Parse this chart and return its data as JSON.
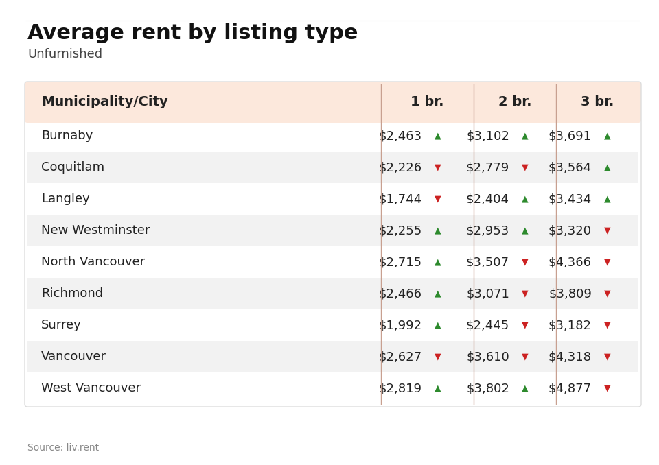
{
  "title": "Average rent by listing type",
  "subtitle": "Unfurnished",
  "source": "Source: liv.rent",
  "header": [
    "Municipality/City",
    "1 br.",
    "2 br.",
    "3 br."
  ],
  "rows": [
    {
      "city": "Burnaby",
      "br1": "$2,463",
      "br1_up": true,
      "br2": "$3,102",
      "br2_up": true,
      "br3": "$3,691",
      "br3_up": true
    },
    {
      "city": "Coquitlam",
      "br1": "$2,226",
      "br1_up": false,
      "br2": "$2,779",
      "br2_up": false,
      "br3": "$3,564",
      "br3_up": true
    },
    {
      "city": "Langley",
      "br1": "$1,744",
      "br1_up": false,
      "br2": "$2,404",
      "br2_up": true,
      "br3": "$3,434",
      "br3_up": true
    },
    {
      "city": "New Westminster",
      "br1": "$2,255",
      "br1_up": true,
      "br2": "$2,953",
      "br2_up": true,
      "br3": "$3,320",
      "br3_up": false
    },
    {
      "city": "North Vancouver",
      "br1": "$2,715",
      "br1_up": true,
      "br2": "$3,507",
      "br2_up": false,
      "br3": "$4,366",
      "br3_up": false
    },
    {
      "city": "Richmond",
      "br1": "$2,466",
      "br1_up": true,
      "br2": "$3,071",
      "br2_up": false,
      "br3": "$3,809",
      "br3_up": false
    },
    {
      "city": "Surrey",
      "br1": "$1,992",
      "br1_up": true,
      "br2": "$2,445",
      "br2_up": false,
      "br3": "$3,182",
      "br3_up": false
    },
    {
      "city": "Vancouver",
      "br1": "$2,627",
      "br1_up": false,
      "br2": "$3,610",
      "br2_up": false,
      "br3": "$4,318",
      "br3_up": false
    },
    {
      "city": "West Vancouver",
      "br1": "$2,819",
      "br1_up": true,
      "br2": "$3,802",
      "br2_up": true,
      "br3": "$4,877",
      "br3_up": false
    }
  ],
  "bg_color": "#ffffff",
  "header_bg": "#fce8dc",
  "row_alt_bg": "#f2f2f2",
  "row_bg": "#ffffff",
  "col_divider_color": "#c8a090",
  "up_color": "#2d8a2d",
  "down_color": "#cc2222",
  "title_fontsize": 22,
  "subtitle_fontsize": 13,
  "header_fontsize": 14,
  "row_fontsize": 13,
  "source_fontsize": 10,
  "top_border_color": "#dddddd",
  "table_border_color": "#dddddd"
}
